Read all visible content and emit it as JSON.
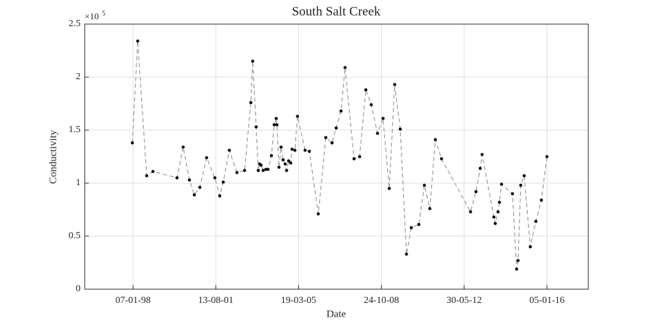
{
  "chart_data": {
    "type": "line",
    "title": "South Salt Creek",
    "x_label": "Date",
    "y_label": "Conductivity",
    "y_multiplier": {
      "base": "×10",
      "exponent": "5"
    },
    "x": [
      "1997-12-27",
      "1998-03-22",
      "1998-08-12",
      "1998-11-19",
      "1999-12-06",
      "2000-03-13",
      "2000-06-20",
      "2000-09-06",
      "2000-12-02",
      "2001-03-20",
      "2001-07-29",
      "2001-10-15",
      "2001-12-09",
      "2002-03-16",
      "2002-07-14",
      "2002-11-13",
      "2003-02-20",
      "2003-03-22",
      "2003-05-16",
      "2003-06-18",
      "2003-07-10",
      "2003-08-01",
      "2003-09-04",
      "2003-10-17",
      "2003-11-19",
      "2004-01-13",
      "2004-02-26",
      "2004-03-29",
      "2004-04-09",
      "2004-05-12",
      "2004-06-14",
      "2004-07-16",
      "2004-08-19",
      "2004-09-10",
      "2004-10-12",
      "2004-11-14",
      "2004-12-06",
      "2005-01-19",
      "2005-03-02",
      "2005-07-01",
      "2005-09-06",
      "2006-01-26",
      "2006-05-25",
      "2006-09-02",
      "2006-11-06",
      "2007-01-22",
      "2007-03-27",
      "2007-08-17",
      "2007-11-13",
      "2008-02-20",
      "2008-05-16",
      "2008-08-23",
      "2008-11-19",
      "2009-02-26",
      "2009-05-23",
      "2009-08-19",
      "2009-11-26",
      "2010-02-11",
      "2010-06-10",
      "2010-09-06",
      "2010-12-02",
      "2011-02-28",
      "2011-06-05",
      "2012-09-08",
      "2012-12-04",
      "2013-02-09",
      "2013-03-11",
      "2013-09-14",
      "2013-10-06",
      "2013-11-19",
      "2013-12-11",
      "2014-01-13",
      "2014-07-06",
      "2014-09-10",
      "2014-10-02",
      "2014-11-14",
      "2015-01-08",
      "2015-04-15",
      "2015-07-12",
      "2015-10-08",
      "2016-01-04"
    ],
    "series": [
      {
        "name": "Conductivity",
        "color": "#999999",
        "marker_color": "#111111",
        "values": [
          1.38,
          2.34,
          1.07,
          1.11,
          1.05,
          1.34,
          1.03,
          0.89,
          0.96,
          1.24,
          1.05,
          0.88,
          1.01,
          1.31,
          1.1,
          1.12,
          1.76,
          2.15,
          1.53,
          1.12,
          1.18,
          1.17,
          1.12,
          1.13,
          1.13,
          1.26,
          1.55,
          1.61,
          1.55,
          1.15,
          1.34,
          1.22,
          1.18,
          1.12,
          1.21,
          1.19,
          1.32,
          1.31,
          1.63,
          1.31,
          1.3,
          0.71,
          1.43,
          1.38,
          1.52,
          1.68,
          2.09,
          1.23,
          1.25,
          1.88,
          1.74,
          1.47,
          1.61,
          0.95,
          1.93,
          1.51,
          0.33,
          0.58,
          0.61,
          0.98,
          0.76,
          1.41,
          1.23,
          0.73,
          0.92,
          1.14,
          1.27,
          0.68,
          0.62,
          0.73,
          0.82,
          0.99,
          0.9,
          0.19,
          0.27,
          0.98,
          1.07,
          0.4,
          0.64,
          0.84,
          1.25
        ]
      }
    ],
    "xlim": [
      "1995-12-02",
      "2017-10-22"
    ],
    "xticks": [
      {
        "value": "1998-01-07",
        "label": "07-01-98"
      },
      {
        "value": "2001-08-13",
        "label": "13-08-01"
      },
      {
        "value": "2005-03-19",
        "label": "19-03-05"
      },
      {
        "value": "2008-10-24",
        "label": "24-10-08"
      },
      {
        "value": "2012-05-30",
        "label": "30-05-12"
      },
      {
        "value": "2016-01-05",
        "label": "05-01-16"
      }
    ],
    "ylim": [
      0,
      2.5
    ],
    "yticks": [
      0,
      0.5,
      1,
      1.5,
      2,
      2.5
    ],
    "grid": true
  }
}
